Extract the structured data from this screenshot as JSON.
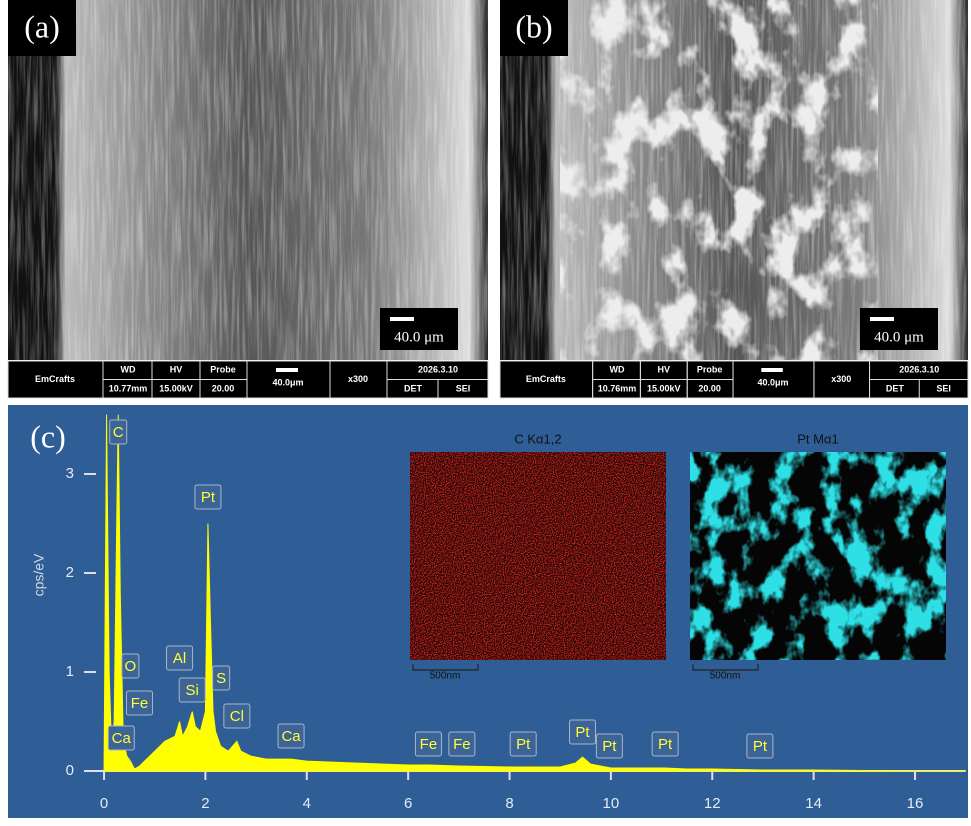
{
  "panels": [
    {
      "label": "(a)",
      "scale_bar": "40.0 μm",
      "info_bar": {
        "brand": "EmCrafts",
        "wd_label": "WD",
        "wd": "10.77mm",
        "hv_label": "HV",
        "hv": "15.00kV",
        "probe_label": "Probe",
        "probe": "20.00",
        "scale": "40.0μm",
        "magnification": "x300",
        "date": "2026.3.10",
        "detector_label": "DET",
        "detector": "SEI"
      }
    },
    {
      "label": "(b)",
      "scale_bar": "40.0 μm",
      "info_bar": {
        "brand": "EmCrafts",
        "wd_label": "WD",
        "wd": "10.76mm",
        "hv_label": "HV",
        "hv": "15.00kV",
        "probe_label": "Probe",
        "probe": "20.00",
        "scale": "40.0μm",
        "magnification": "x300",
        "date": "2026.3.10",
        "detector_label": "DET",
        "detector": "SEI"
      }
    }
  ],
  "chart_data": {
    "type": "area",
    "panel_label": "(c)",
    "y_label": "cps/eV",
    "color": "#ffff00",
    "x": [
      0,
      0.05,
      0.1,
      0.15,
      0.2,
      0.25,
      0.28,
      0.32,
      0.38,
      0.45,
      0.52,
      0.6,
      0.7,
      0.8,
      1.0,
      1.2,
      1.4,
      1.49,
      1.55,
      1.65,
      1.74,
      1.8,
      1.9,
      2.0,
      2.05,
      2.1,
      2.15,
      2.2,
      2.3,
      2.45,
      2.62,
      2.7,
      2.9,
      3.2,
      3.69,
      4.0,
      5,
      6,
      6.4,
      7,
      8,
      9,
      9.3,
      9.44,
      9.6,
      10,
      11.07,
      11.5,
      12,
      13,
      14,
      15,
      16,
      17
    ],
    "values": [
      0,
      3.6,
      1.0,
      0.2,
      0.5,
      2.5,
      3.6,
      1.8,
      0.3,
      0.15,
      0.1,
      0.02,
      0.05,
      0.1,
      0.2,
      0.3,
      0.35,
      0.5,
      0.35,
      0.45,
      0.6,
      0.45,
      0.4,
      0.6,
      2.5,
      1.5,
      0.6,
      0.4,
      0.25,
      0.2,
      0.3,
      0.2,
      0.15,
      0.12,
      0.12,
      0.1,
      0.08,
      0.06,
      0.06,
      0.05,
      0.04,
      0.04,
      0.08,
      0.14,
      0.07,
      0.03,
      0.03,
      0.02,
      0.02,
      0.01,
      0.01,
      0.005,
      0,
      0
    ],
    "xlim": [
      -0.2,
      17
    ],
    "ylim": [
      -0.1,
      3.6
    ],
    "xticks": [
      0,
      2,
      4,
      6,
      8,
      10,
      12,
      14,
      16
    ],
    "yticks": [
      0,
      1,
      2,
      3
    ],
    "peak_labels": [
      {
        "label": "C",
        "x": 0.28
      },
      {
        "label": "Pt",
        "x": 2.05
      },
      {
        "label": "O",
        "x": 0.52
      },
      {
        "label": "Fe",
        "x": 0.7
      },
      {
        "label": "Ca",
        "x": 0.34
      },
      {
        "label": "Al",
        "x": 1.49
      },
      {
        "label": "Si",
        "x": 1.74
      },
      {
        "label": "S",
        "x": 2.31
      },
      {
        "label": "Cl",
        "x": 2.62
      },
      {
        "label": "Ca",
        "x": 3.69
      },
      {
        "label": "Fe",
        "x": 6.4
      },
      {
        "label": "Fe",
        "x": 7.06
      },
      {
        "label": "Pt",
        "x": 8.27
      },
      {
        "label": "Pt",
        "x": 9.44
      },
      {
        "label": "Pt",
        "x": 9.97
      },
      {
        "label": "Pt",
        "x": 11.07
      },
      {
        "label": "Pt",
        "x": 12.94
      }
    ],
    "maps": [
      {
        "title": "C Kα1,2",
        "color": "#e3221c",
        "scale_bar": "500nm"
      },
      {
        "title": "Pt Mα1",
        "color": "#2ee0e6",
        "scale_bar": "500nm"
      }
    ]
  }
}
